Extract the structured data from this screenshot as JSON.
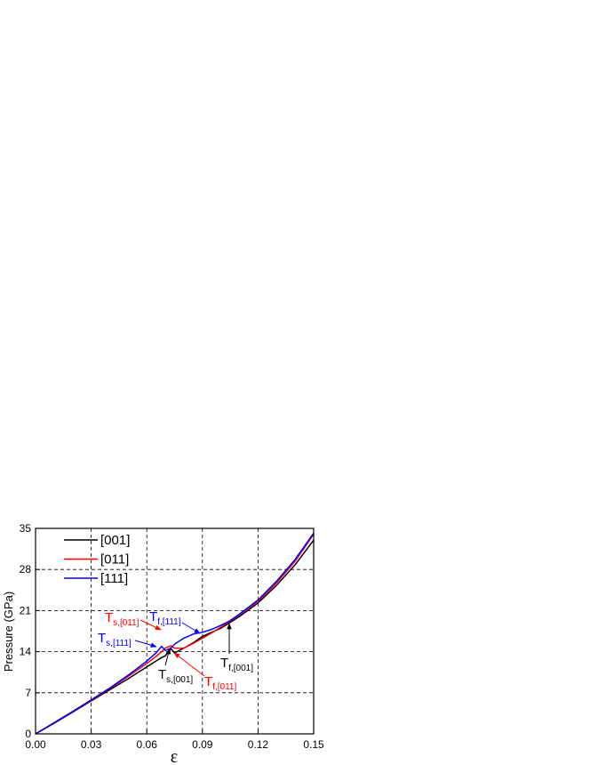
{
  "chart_data": {
    "type": "line",
    "x_label": "ε",
    "y_label": "Pressure (GPa)",
    "x": [
      0,
      0.01,
      0.02,
      0.03,
      0.04,
      0.05,
      0.06,
      0.065,
      0.068,
      0.07,
      0.073,
      0.075,
      0.08,
      0.085,
      0.09,
      0.095,
      0.1,
      0.105,
      0.11,
      0.12,
      0.13,
      0.14,
      0.15
    ],
    "series": [
      {
        "name": "[001]",
        "color": "#000000",
        "values": [
          0,
          1.8,
          3.7,
          5.6,
          7.5,
          9.4,
          11.4,
          12.4,
          13.0,
          13.3,
          14.5,
          13.8,
          14.6,
          15.5,
          16.6,
          17.3,
          18.0,
          19.0,
          20.0,
          22.3,
          25.3,
          28.8,
          33.0
        ]
      },
      {
        "name": "[011]",
        "color": "#ff0000",
        "values": [
          0,
          1.9,
          3.8,
          5.7,
          7.7,
          9.8,
          12.0,
          13.2,
          14.0,
          14.6,
          15.0,
          14.6,
          14.6,
          15.4,
          16.3,
          17.2,
          18.2,
          19.2,
          20.3,
          22.6,
          25.7,
          29.4,
          34.0
        ]
      },
      {
        "name": "[111]",
        "color": "#0000ff",
        "values": [
          0,
          1.9,
          3.8,
          5.8,
          7.8,
          10.0,
          12.4,
          13.8,
          14.9,
          14.2,
          14.6,
          15.3,
          16.3,
          17.0,
          17.3,
          17.8,
          18.5,
          19.3,
          20.4,
          22.8,
          26.0,
          29.7,
          34.2
        ]
      }
    ],
    "xlim": [
      0,
      0.15
    ],
    "xticks": [
      {
        "value": 0,
        "label": "0.00"
      },
      {
        "value": 0.03,
        "label": "0.03"
      },
      {
        "value": 0.06,
        "label": "0.06"
      },
      {
        "value": 0.09,
        "label": "0.09"
      },
      {
        "value": 0.12,
        "label": "0.12"
      },
      {
        "value": 0.15,
        "label": "0.15"
      }
    ],
    "ylim": [
      0,
      35
    ],
    "yticks": [
      0,
      7,
      14,
      21,
      28,
      35
    ],
    "grid": true,
    "legend": "upper left",
    "annotations": [
      {
        "text": "T",
        "sub": "s,[011]",
        "color": "#ff0000"
      },
      {
        "text": "T",
        "sub": "f,[111]",
        "color": "#0000ff"
      },
      {
        "text": "T",
        "sub": "s,[111]",
        "color": "#0000ff"
      },
      {
        "text": "T",
        "sub": "s,[001]",
        "color": "#000000"
      },
      {
        "text": "T",
        "sub": "f,[011]",
        "color": "#ff0000"
      },
      {
        "text": "T",
        "sub": "f,[001]",
        "color": "#000000"
      }
    ]
  }
}
